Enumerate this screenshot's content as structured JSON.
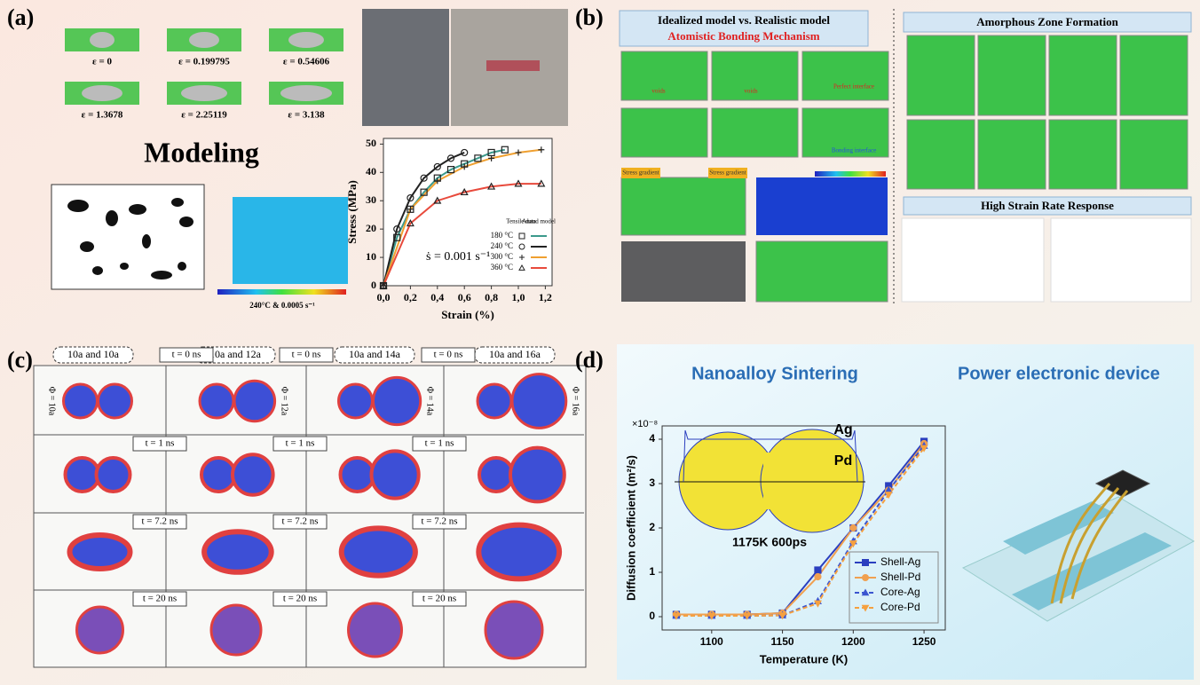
{
  "panel_a": {
    "label": "(a)",
    "strains": [
      "ε = 0",
      "ε = 0.199795",
      "ε = 0.54606",
      "ε = 1.3678",
      "ε = 2.25119",
      "ε = 3.138"
    ],
    "modeling": "Modeling",
    "contour_caption": "240°C & 0.0005 s⁻¹"
  },
  "panel_b": {
    "label": "(b)",
    "title1": "Idealized model vs. Realistic model",
    "title2": "Atomistic Bonding Mechanism",
    "amorphous_title": "Amorphous Zone Formation",
    "strain_rate_title": "High Strain Rate Response",
    "notes": [
      "voids",
      "voids",
      "Perfect interface",
      "Bonding interface",
      "Stress gradient",
      "Stress gradient"
    ]
  },
  "panel_c": {
    "label": "(c)",
    "pairs": [
      "10a and 10a",
      "10a and 12a",
      "10a and 14a",
      "10a and 16a"
    ],
    "diameters": [
      "Φ = 10a",
      "Φ = 12a",
      "Φ = 14a",
      "Φ = 16a"
    ],
    "rows": [
      [
        "t = 0 ns",
        "t = 0 ns",
        "t = 0 ns"
      ],
      [
        "t = 1 ns",
        "t = 1 ns",
        "t = 1 ns"
      ],
      [
        "t = 7.2 ns",
        "t = 7.2 ns",
        "t = 7.2 ns"
      ],
      [
        "t = 20 ns",
        "t = 20 ns",
        "t = 20 ns"
      ]
    ]
  },
  "panel_d": {
    "label": "(d)",
    "title_left": "Nanoalloy Sintering",
    "title_right": "Power electronic device",
    "inset": [
      "Ag",
      "Pd",
      "1175K 600ps"
    ]
  },
  "chart_data": [
    {
      "type": "line",
      "xlabel": "Strain (%)",
      "ylabel": "Stress (MPa)",
      "annotation": "ṡ = 0.001 s⁻¹",
      "legend_headers": [
        "Tensile data",
        "Anand model"
      ],
      "xlim": [
        0,
        1.25
      ],
      "ylim": [
        0,
        52
      ],
      "xticks": [
        {
          "value": 0,
          "label": "0,0"
        },
        {
          "value": 0.2,
          "label": "0,2"
        },
        {
          "value": 0.4,
          "label": "0,4"
        },
        {
          "value": 0.6,
          "label": "0,6"
        },
        {
          "value": 0.8,
          "label": "0,8"
        },
        {
          "value": 1.0,
          "label": "1,0"
        },
        {
          "value": 1.2,
          "label": "1,2"
        }
      ],
      "yticks": [
        0,
        10,
        20,
        30,
        40,
        50
      ],
      "series": [
        {
          "name": "180 °C",
          "color": "#3c9a8c",
          "marker": "square",
          "x": [
            0,
            0.1,
            0.2,
            0.3,
            0.4,
            0.5,
            0.6,
            0.7,
            0.8,
            0.9
          ],
          "values": [
            0,
            17,
            27,
            33,
            38,
            41,
            43,
            45,
            47,
            48
          ]
        },
        {
          "name": "240 °C",
          "color": "#222222",
          "marker": "circle",
          "x": [
            0,
            0.1,
            0.2,
            0.3,
            0.4,
            0.5,
            0.6
          ],
          "values": [
            0,
            20,
            31,
            38,
            42,
            45,
            47
          ]
        },
        {
          "name": "300 °C",
          "color": "#f0a030",
          "marker": "plus",
          "x": [
            0,
            0.2,
            0.4,
            0.6,
            0.8,
            1.0,
            1.17
          ],
          "values": [
            0,
            27,
            37,
            42,
            45,
            47,
            48
          ]
        },
        {
          "name": "360 °C",
          "color": "#e84a3c",
          "marker": "triangle",
          "x": [
            0,
            0.2,
            0.4,
            0.6,
            0.8,
            1.0,
            1.17
          ],
          "values": [
            0,
            22,
            30,
            33,
            35,
            36,
            36
          ]
        }
      ]
    },
    {
      "type": "line",
      "xlabel": "Temperature (K)",
      "ylabel": "Diffusion coefficient (m²/s)",
      "annotation": "×10⁻⁸",
      "x": [
        1075,
        1100,
        1125,
        1150,
        1175,
        1200,
        1225,
        1250
      ],
      "xlim": [
        1065,
        1265
      ],
      "ylim": [
        -0.3,
        4.3
      ],
      "xticks": [
        1100,
        1150,
        1200,
        1250
      ],
      "yticks": [
        0,
        1,
        2,
        3,
        4
      ],
      "series": [
        {
          "name": "Shell-Ag",
          "color": "#2b3fbf",
          "marker": "square",
          "dash": false,
          "values": [
            0.05,
            0.05,
            0.05,
            0.08,
            1.05,
            2.0,
            2.95,
            3.95
          ]
        },
        {
          "name": "Shell-Pd",
          "color": "#f0a050",
          "marker": "circle",
          "dash": false,
          "values": [
            0.05,
            0.05,
            0.05,
            0.08,
            0.9,
            2.0,
            2.85,
            3.9
          ]
        },
        {
          "name": "Core-Ag",
          "color": "#3b55d0",
          "marker": "triangle",
          "dash": true,
          "values": [
            0.02,
            0.02,
            0.02,
            0.03,
            0.35,
            1.7,
            2.85,
            3.85
          ]
        },
        {
          "name": "Core-Pd",
          "color": "#f5a040",
          "marker": "triangle-down",
          "dash": true,
          "values": [
            0.02,
            0.02,
            0.02,
            0.03,
            0.3,
            1.65,
            2.75,
            3.8
          ]
        }
      ]
    }
  ]
}
